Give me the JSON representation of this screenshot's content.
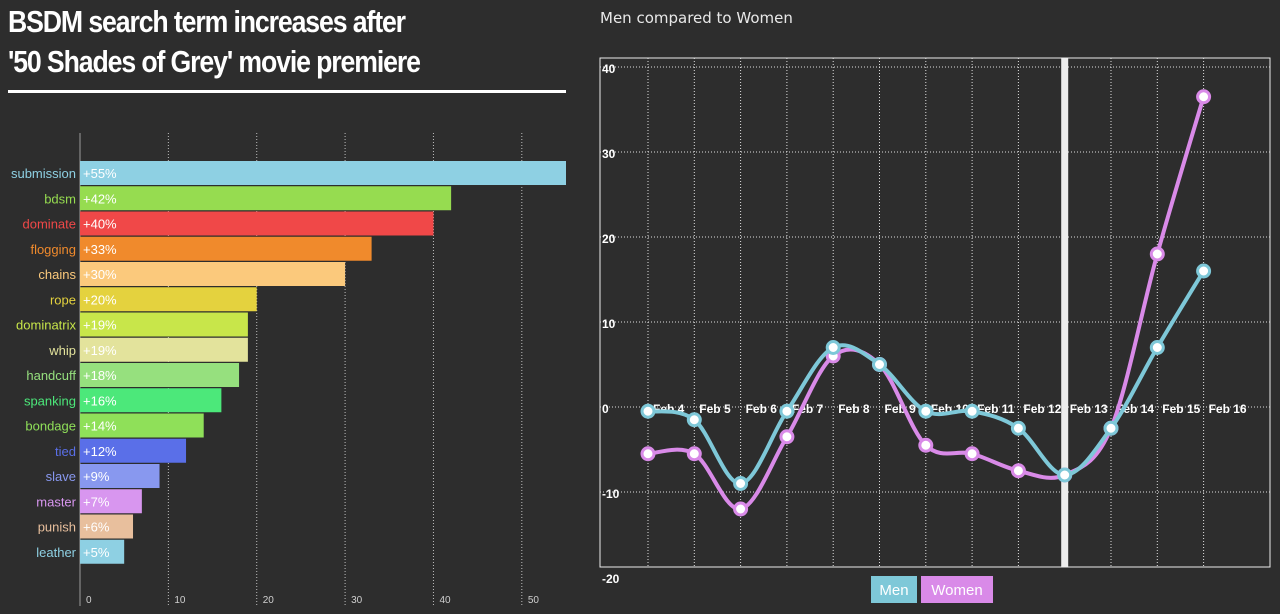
{
  "headline": {
    "line1": "BSDM search term increases after",
    "line2": "'50 Shades of Grey' movie premiere"
  },
  "chart_data": [
    {
      "type": "bar",
      "orientation": "horizontal",
      "categories": [
        "submission",
        "bdsm",
        "dominate",
        "flogging",
        "chains",
        "rope",
        "dominatrix",
        "whip",
        "handcuff",
        "spanking",
        "bondage",
        "tied",
        "slave",
        "master",
        "punish",
        "leather"
      ],
      "values": [
        55,
        42,
        40,
        33,
        30,
        20,
        19,
        19,
        18,
        16,
        14,
        12,
        9,
        7,
        6,
        5
      ],
      "value_labels": [
        "+55%",
        "+42%",
        "+40%",
        "+33%",
        "+30%",
        "+20%",
        "+19%",
        "+19%",
        "+18%",
        "+16%",
        "+14%",
        "+12%",
        "+9%",
        "+7%",
        "+6%",
        "+5%"
      ],
      "colors": [
        "#8ed0e3",
        "#96dc50",
        "#f04848",
        "#f08a2c",
        "#fbc97c",
        "#e4d23e",
        "#c8e64a",
        "#e3e39c",
        "#96e07e",
        "#4ce87a",
        "#8fe059",
        "#5a6fe8",
        "#8898ef",
        "#d896ef",
        "#e8bf9d",
        "#8ed0e3"
      ],
      "xlim": [
        0,
        55
      ],
      "xticks": [
        0,
        10,
        20,
        30,
        40,
        50
      ],
      "grid": true
    },
    {
      "type": "line",
      "title": "Men compared to Women",
      "x": [
        "Feb 4",
        "Feb 5",
        "Feb 6",
        "Feb 7",
        "Feb 8",
        "Feb 9",
        "Feb 10",
        "Feb 11",
        "Feb 12",
        "Feb 13",
        "Feb 14",
        "Feb 15",
        "Feb 16"
      ],
      "series": [
        {
          "name": "Men",
          "color": "#7ec8d8",
          "values": [
            -0.5,
            -1.5,
            -9,
            -0.5,
            7,
            5,
            -0.5,
            -0.5,
            -2.5,
            -8,
            -2.5,
            7,
            16
          ]
        },
        {
          "name": "Women",
          "color": "#d98ae8",
          "values": [
            -5.5,
            -5.5,
            -12,
            -3.5,
            6,
            5,
            -4.5,
            -5.5,
            -7.5,
            -8,
            -2.5,
            18,
            36.5
          ]
        }
      ],
      "ylim": [
        -20,
        40
      ],
      "yticks": [
        -20,
        -10,
        0,
        10,
        20,
        30,
        40
      ],
      "grid": true,
      "highlight_x": "Feb 13",
      "legend_placement": "bottom-center"
    }
  ]
}
